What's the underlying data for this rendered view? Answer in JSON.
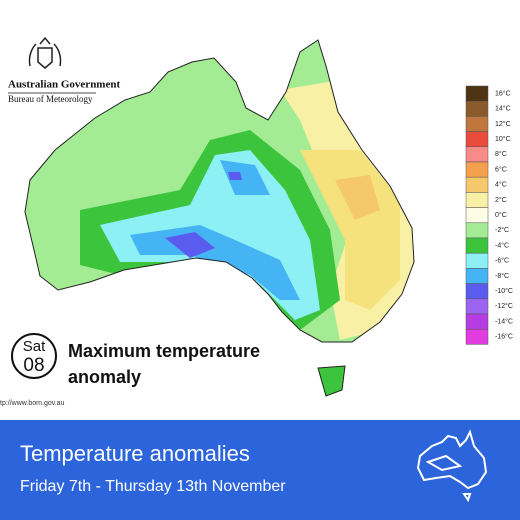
{
  "header": {
    "agency": "Australian Government",
    "bureau": "Bureau of Meteorology"
  },
  "legend": [
    {
      "label": "16°C",
      "color": "#4e3414"
    },
    {
      "label": "14°C",
      "color": "#8a5a2a"
    },
    {
      "label": "12°C",
      "color": "#c0763c"
    },
    {
      "label": "10°C",
      "color": "#e84a3c"
    },
    {
      "label": "8°C",
      "color": "#f88a8a"
    },
    {
      "label": "6°C",
      "color": "#f4a04c"
    },
    {
      "label": "4°C",
      "color": "#f6c86c"
    },
    {
      "label": "2°C",
      "color": "#f8f0a4"
    },
    {
      "label": "0°C",
      "color": "#fdfde6"
    },
    {
      "label": "-2°C",
      "color": "#a4ec94"
    },
    {
      "label": "-4°C",
      "color": "#3cc43c"
    },
    {
      "label": "-6°C",
      "color": "#8cf0f4"
    },
    {
      "label": "-8°C",
      "color": "#44b4f4"
    },
    {
      "label": "-10°C",
      "color": "#5a5cf0"
    },
    {
      "label": "-12°C",
      "color": "#9c64f0"
    },
    {
      "label": "-14°C",
      "color": "#b83ce4"
    },
    {
      "label": "-16°C",
      "color": "#e03ce0"
    }
  ],
  "map_badge": {
    "day": "Sat",
    "date": "08"
  },
  "map_caption": [
    "Maximum temperature",
    "anomaly"
  ],
  "source_url": "tp://www.bom.gov.au",
  "footer": {
    "title": "Temperature anomalies",
    "subtitle": "Friday 7th - Thursday 13th November"
  }
}
